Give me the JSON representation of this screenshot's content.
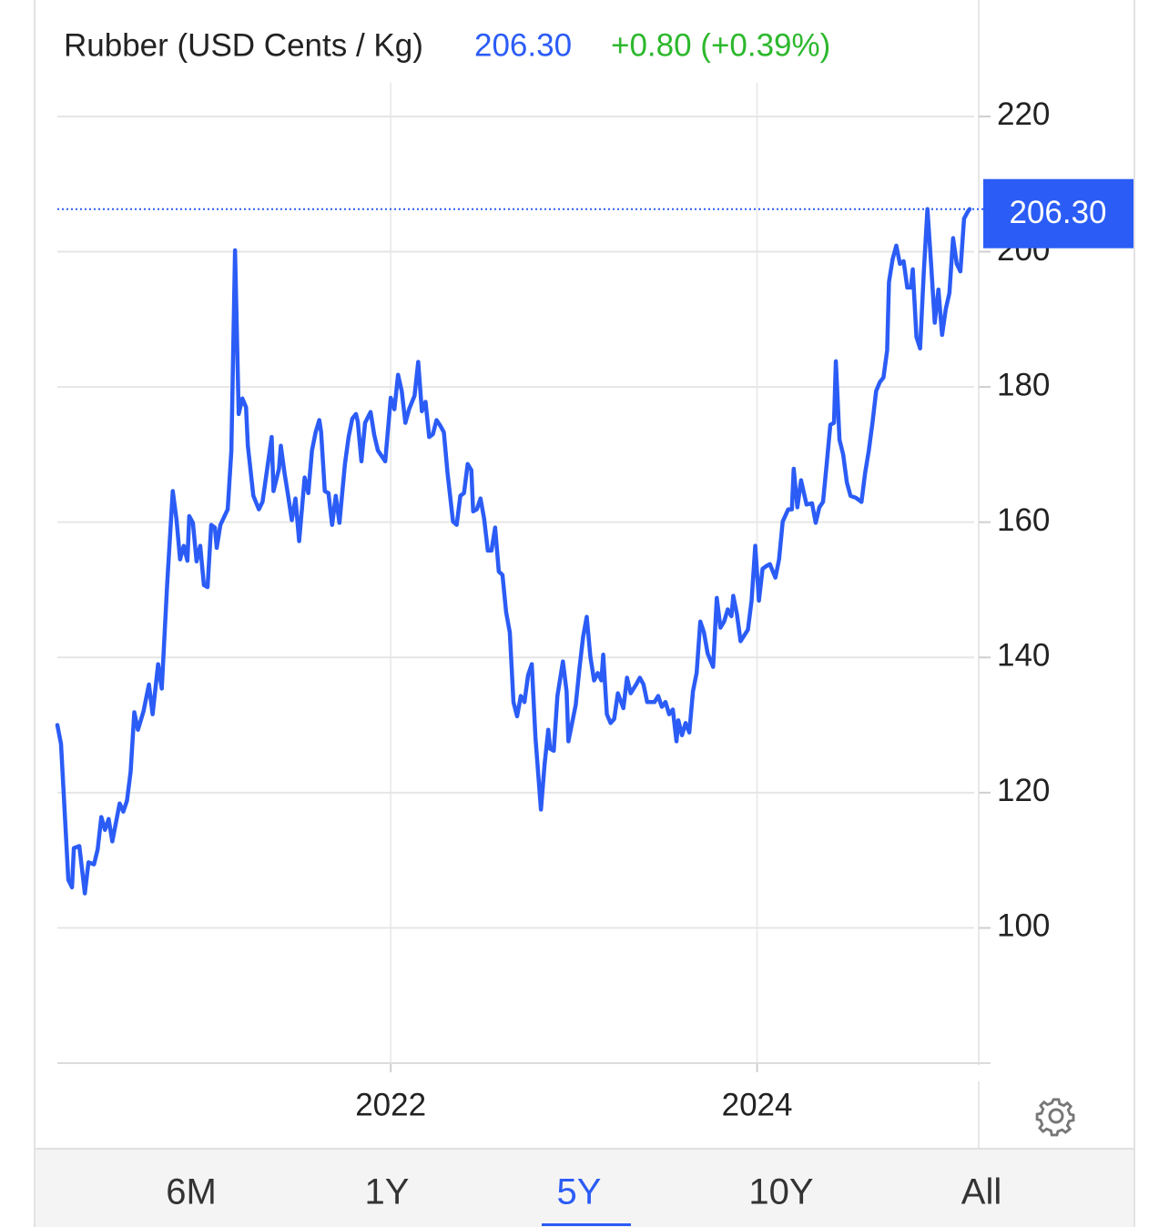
{
  "chart_data": {
    "type": "line",
    "title": "Rubber (USD Cents / Kg)",
    "price": "206.30",
    "change": "+0.80 (+0.39%)",
    "color": "#2b5cf6",
    "grid": true,
    "xlim": [
      2020.18,
      2025.21
    ],
    "ylim": [
      80,
      225
    ],
    "xticks": [
      2022,
      2024
    ],
    "yticks": [
      100,
      120,
      140,
      160,
      180,
      200,
      220
    ],
    "ranges": [
      "6M",
      "1Y",
      "5Y",
      "10Y",
      "All"
    ],
    "selected_range": 2,
    "x": [
      2020.18,
      2020.2,
      2020.24,
      2020.26,
      2020.27,
      2020.3,
      2020.33,
      2020.35,
      2020.38,
      2020.4,
      2020.42,
      2020.44,
      2020.46,
      2020.48,
      2020.52,
      2020.54,
      2020.56,
      2020.58,
      2020.6,
      2020.62,
      2020.65,
      2020.68,
      2020.7,
      2020.73,
      2020.75,
      2020.78,
      2020.81,
      2020.83,
      2020.85,
      2020.87,
      2020.89,
      2020.9,
      2020.92,
      2020.94,
      2020.96,
      2020.98,
      2021.0,
      2021.02,
      2021.04,
      2021.05,
      2021.07,
      2021.11,
      2021.13,
      2021.15,
      2021.17,
      2021.19,
      2021.21,
      2021.22,
      2021.25,
      2021.28,
      2021.3,
      2021.35,
      2021.36,
      2021.39,
      2021.4,
      2021.42,
      2021.44,
      2021.46,
      2021.48,
      2021.5,
      2021.53,
      2021.55,
      2021.57,
      2021.59,
      2021.61,
      2021.62,
      2021.64,
      2021.66,
      2021.68,
      2021.7,
      2021.72,
      2021.75,
      2021.77,
      2021.79,
      2021.81,
      2021.82,
      2021.84,
      2021.86,
      2021.89,
      2021.91,
      2021.93,
      2021.97,
      2022.0,
      2022.02,
      2022.04,
      2022.06,
      2022.08,
      2022.1,
      2022.13,
      2022.15,
      2022.17,
      2022.19,
      2022.21,
      2022.23,
      2022.25,
      2022.27,
      2022.29,
      2022.31,
      2022.34,
      2022.36,
      2022.38,
      2022.4,
      2022.42,
      2022.44,
      2022.45,
      2022.47,
      2022.49,
      2022.51,
      2022.53,
      2022.55,
      2022.57,
      2022.59,
      2022.61,
      2022.63,
      2022.65,
      2022.67,
      2022.69,
      2022.71,
      2022.73,
      2022.75,
      2022.77,
      2022.79,
      2022.82,
      2022.84,
      2022.86,
      2022.87,
      2022.89,
      2022.91,
      2022.94,
      2022.96,
      2022.97,
      2023.01,
      2023.03,
      2023.05,
      2023.07,
      2023.09,
      2023.11,
      2023.13,
      2023.15,
      2023.16,
      2023.18,
      2023.2,
      2023.22,
      2023.24,
      2023.27,
      2023.29,
      2023.31,
      2023.34,
      2023.36,
      2023.38,
      2023.4,
      2023.44,
      2023.46,
      2023.48,
      2023.5,
      2023.52,
      2023.54,
      2023.56,
      2023.57,
      2023.59,
      2023.61,
      2023.63,
      2023.65,
      2023.67,
      2023.69,
      2023.71,
      2023.73,
      2023.76,
      2023.78,
      2023.8,
      2023.82,
      2023.84,
      2023.86,
      2023.87,
      2023.89,
      2023.91,
      2023.95,
      2023.97,
      2023.99,
      2024.01,
      2024.03,
      2024.05,
      2024.07,
      2024.1,
      2024.12,
      2024.14,
      2024.17,
      2024.19,
      2024.2,
      2024.22,
      2024.24,
      2024.27,
      2024.3,
      2024.32,
      2024.34,
      2024.36,
      2024.38,
      2024.4,
      2024.42,
      2024.43,
      2024.45,
      2024.47,
      2024.49,
      2024.51,
      2024.54,
      2024.57,
      2024.59,
      2024.61,
      2024.63,
      2024.65,
      2024.67,
      2024.69,
      2024.71,
      2024.72,
      2024.74,
      2024.76,
      2024.78,
      2024.8,
      2024.82,
      2024.84,
      2024.85,
      2024.87,
      2024.89,
      2024.91,
      2024.93,
      2024.95,
      2024.97,
      2024.99,
      2025.01,
      2025.03,
      2025.05,
      2025.07,
      2025.09,
      2025.11,
      2025.13,
      2025.15,
      2025.16
    ],
    "values": [
      130.0,
      127.2,
      107.1,
      106.0,
      111.8,
      112.1,
      105.1,
      109.7,
      109.4,
      111.6,
      116.4,
      114.5,
      116.1,
      112.8,
      118.4,
      117.2,
      118.8,
      123.1,
      131.9,
      129.3,
      132.0,
      136.0,
      131.6,
      139.0,
      135.4,
      151.1,
      164.6,
      160.5,
      154.5,
      156.5,
      154.3,
      160.9,
      159.9,
      154.2,
      156.5,
      150.7,
      150.4,
      159.6,
      159.2,
      156.2,
      159.6,
      161.9,
      170.6,
      200.2,
      176.0,
      178.3,
      177.0,
      171.3,
      163.9,
      161.9,
      163.0,
      172.6,
      164.6,
      167.9,
      171.3,
      167.3,
      163.9,
      160.3,
      163.5,
      157.2,
      166.6,
      164.3,
      170.6,
      173.3,
      175.1,
      173.3,
      164.6,
      164.3,
      159.6,
      163.9,
      159.9,
      168.6,
      172.6,
      175.3,
      176.0,
      174.9,
      169.0,
      174.7,
      176.3,
      172.9,
      170.6,
      169.0,
      178.4,
      176.7,
      181.8,
      179.4,
      174.7,
      176.7,
      178.7,
      183.7,
      176.4,
      177.8,
      172.6,
      173.0,
      175.1,
      174.3,
      173.3,
      167.3,
      160.1,
      159.6,
      163.9,
      164.3,
      168.6,
      167.7,
      161.6,
      161.9,
      163.5,
      160.5,
      155.8,
      155.8,
      159.2,
      152.7,
      152.2,
      146.7,
      143.7,
      133.4,
      131.3,
      134.3,
      133.4,
      137.4,
      139.0,
      128.2,
      117.5,
      124.2,
      129.3,
      126.5,
      126.2,
      134.3,
      139.4,
      135.0,
      127.6,
      133.0,
      138.3,
      143.0,
      146.0,
      140.1,
      136.6,
      137.7,
      136.6,
      140.4,
      131.6,
      130.3,
      130.9,
      134.7,
      132.5,
      137.0,
      134.7,
      136.0,
      137.0,
      136.0,
      133.4,
      133.4,
      134.3,
      132.7,
      133.4,
      131.6,
      132.3,
      127.6,
      130.7,
      128.5,
      130.3,
      128.9,
      135.0,
      137.7,
      145.3,
      143.7,
      140.6,
      138.6,
      148.8,
      144.4,
      145.3,
      147.1,
      146.1,
      149.1,
      146.4,
      142.4,
      144.1,
      148.4,
      156.5,
      148.4,
      153.1,
      153.5,
      153.8,
      151.8,
      154.5,
      160.1,
      161.9,
      161.9,
      167.9,
      162.2,
      166.2,
      162.6,
      162.8,
      159.9,
      162.2,
      163.0,
      168.6,
      174.4,
      174.7,
      183.8,
      172.2,
      170.0,
      165.9,
      163.9,
      163.6,
      163.0,
      167.3,
      170.6,
      174.7,
      179.4,
      180.7,
      181.4,
      185.4,
      195.5,
      198.9,
      200.9,
      198.2,
      198.6,
      194.7,
      194.7,
      197.4,
      187.4,
      185.7,
      196.9,
      206.3,
      198.2,
      189.5,
      194.4,
      187.7,
      191.5,
      193.9,
      202.0,
      198.2,
      197.1,
      204.9,
      205.9,
      206.3
    ]
  }
}
